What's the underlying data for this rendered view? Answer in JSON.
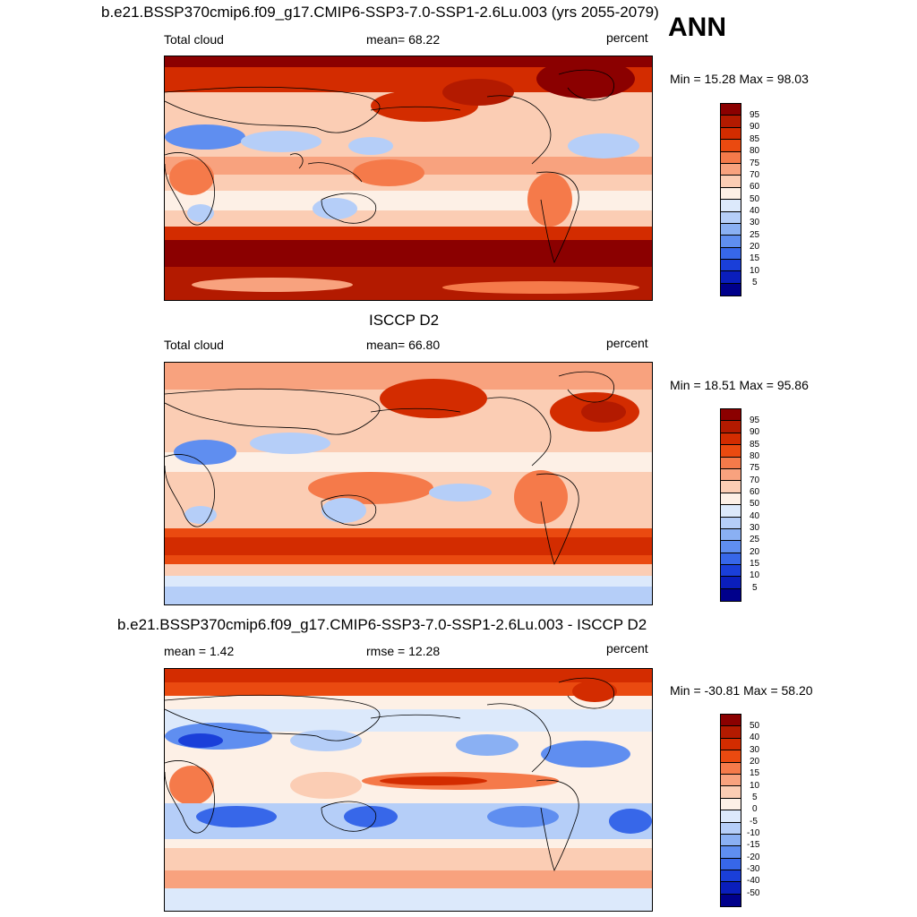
{
  "season": "ANN",
  "panels": [
    {
      "title": "b.e21.BSSP370cmip6.f09_g17.CMIP6-SSP3-7.0-SSP1-2.6Lu.003 (yrs 2055-2079)",
      "left_label": "Total cloud",
      "center_label": "mean=  68.22",
      "right_label": "percent",
      "minmax": "Min =  15.28 Max =  98.03",
      "colorbar_labels": [
        "95",
        "90",
        "85",
        "80",
        "75",
        "70",
        "60",
        "50",
        "40",
        "30",
        "25",
        "20",
        "15",
        "10",
        "5"
      ],
      "colorbar_colors": [
        "#8b0000",
        "#b31a00",
        "#d32c00",
        "#ea4a10",
        "#f57a4a",
        "#f8a27e",
        "#fbcdb4",
        "#fdf0e6",
        "#dce9fb",
        "#b5cef8",
        "#8ab0f3",
        "#5f8ef0",
        "#3767e9",
        "#1a3fd9",
        "#0a1ebc",
        "#00008b"
      ]
    },
    {
      "title": "ISCCP D2",
      "left_label": "Total cloud",
      "center_label": "mean=  66.80",
      "right_label": "percent",
      "minmax": "Min =  18.51 Max =  95.86",
      "colorbar_labels": [
        "95",
        "90",
        "85",
        "80",
        "75",
        "70",
        "60",
        "50",
        "40",
        "30",
        "25",
        "20",
        "15",
        "10",
        "5"
      ],
      "colorbar_colors": [
        "#8b0000",
        "#b31a00",
        "#d32c00",
        "#ea4a10",
        "#f57a4a",
        "#f8a27e",
        "#fbcdb4",
        "#fdf0e6",
        "#dce9fb",
        "#b5cef8",
        "#8ab0f3",
        "#5f8ef0",
        "#3767e9",
        "#1a3fd9",
        "#0a1ebc",
        "#00008b"
      ]
    },
    {
      "title": "b.e21.BSSP370cmip6.f09_g17.CMIP6-SSP3-7.0-SSP1-2.6Lu.003 - ISCCP D2",
      "left_label": "mean =   1.42",
      "center_label": "rmse =  12.28",
      "right_label": "percent",
      "minmax": "Min = -30.81 Max =  58.20",
      "colorbar_labels": [
        "50",
        "40",
        "30",
        "20",
        "15",
        "10",
        "5",
        "0",
        "-5",
        "-10",
        "-15",
        "-20",
        "-30",
        "-40",
        "-50"
      ],
      "colorbar_colors": [
        "#8b0000",
        "#b31a00",
        "#d32c00",
        "#ea4a10",
        "#f57a4a",
        "#f8a27e",
        "#fbcdb4",
        "#fdf0e6",
        "#dce9fb",
        "#b5cef8",
        "#8ab0f3",
        "#5f8ef0",
        "#3767e9",
        "#1a3fd9",
        "#0a1ebc",
        "#00008b"
      ]
    }
  ]
}
